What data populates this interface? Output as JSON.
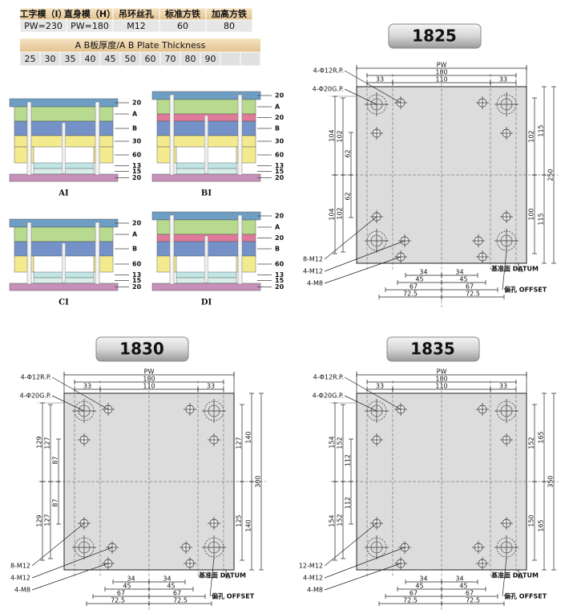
{
  "spec_table": {
    "headers": [
      "工字模（I）",
      "直身模（H）",
      "吊环丝孔",
      "标准方铁",
      "加高方铁"
    ],
    "values": [
      "PW=230",
      "PW=180",
      "M12",
      "60",
      "80"
    ]
  },
  "thickness": {
    "title": "A B板厚度/A B Plate Thickness",
    "values": [
      "25",
      "30",
      "35",
      "40",
      "45",
      "50",
      "60",
      "70",
      "80",
      "90"
    ]
  },
  "molds": [
    {
      "name": "AI",
      "layers": [
        "20",
        "A",
        "B",
        "30",
        "60",
        "13",
        "15",
        "20"
      ]
    },
    {
      "name": "BI",
      "layers": [
        "20",
        "A",
        "20",
        "B",
        "30",
        "60",
        "13",
        "15",
        "20"
      ]
    },
    {
      "name": "CI",
      "layers": [
        "20",
        "A",
        "B",
        "60",
        "13",
        "15",
        "20"
      ]
    },
    {
      "name": "DI",
      "layers": [
        "20",
        "A",
        "20",
        "B",
        "60",
        "13",
        "15",
        "20"
      ]
    }
  ],
  "plates": [
    {
      "title": "1825",
      "pw": "PW",
      "w180": "180",
      "w110": "110",
      "w33": [
        "33",
        "33"
      ],
      "rp": "4-Φ12R.P.",
      "gp": "4-Φ20G.P.",
      "holes": [
        "8-M12",
        "4-M12",
        "4-M8"
      ],
      "left": [
        "104",
        "102",
        "62",
        "104",
        "102",
        "62"
      ],
      "right": [
        "102",
        "115",
        "250",
        "100",
        "115"
      ],
      "bottom": [
        "34",
        "45",
        "67",
        "72.5",
        "34",
        "45",
        "67",
        "72.5"
      ],
      "datum": "基准面 DATUM",
      "offset": "偏孔 OFFSET"
    },
    {
      "title": "1830",
      "pw": "PW",
      "w180": "180",
      "w110": "110",
      "w33": [
        "33",
        "33"
      ],
      "rp": "4-Φ12R.P.",
      "gp": "4-Φ20G.P.",
      "holes": [
        "8-M12",
        "4-M12",
        "4-M8"
      ],
      "left": [
        "129",
        "127",
        "87",
        "129",
        "127",
        "87"
      ],
      "right": [
        "127",
        "140",
        "300",
        "125",
        "140"
      ],
      "bottom": [
        "34",
        "45",
        "67",
        "72.5",
        "34",
        "45",
        "67",
        "72.5"
      ],
      "datum": "基准面 DATUM",
      "offset": "偏孔 OFFSET"
    },
    {
      "title": "1835",
      "pw": "PW",
      "w180": "180",
      "w110": "110",
      "w33": [
        "33",
        "33"
      ],
      "rp": "4-Φ12R.P.",
      "gp": "4-Φ20G.P.",
      "holes": [
        "12-M12",
        "4-M12",
        "4-M8"
      ],
      "left": [
        "154",
        "152",
        "112",
        "154",
        "152",
        "112"
      ],
      "right": [
        "152",
        "165",
        "350",
        "150",
        "165"
      ],
      "bottom": [
        "34",
        "45",
        "67",
        "72.5",
        "34",
        "45",
        "67",
        "72.5"
      ],
      "datum": "基准面 DATUM",
      "offset": "偏孔 OFFSET"
    }
  ]
}
